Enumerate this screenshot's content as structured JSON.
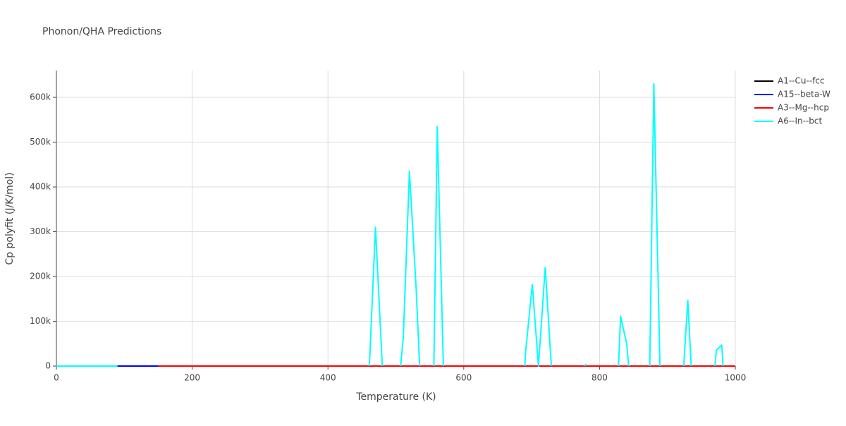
{
  "chart_data": {
    "type": "line",
    "title": "Phonon/QHA Predictions",
    "x_label": "Temperature (K)",
    "y_label": "Cp polyfit (J/K/mol)",
    "xlim": [
      0,
      1000
    ],
    "xticks": [
      0,
      200,
      400,
      600,
      800,
      1000
    ],
    "ylim": [
      0,
      660000
    ],
    "yticks": [
      0,
      {
        "value": 100000,
        "label": "100k"
      },
      {
        "value": 200000,
        "label": "200k"
      },
      {
        "value": 300000,
        "label": "300k"
      },
      {
        "value": 400000,
        "label": "400k"
      },
      {
        "value": 500000,
        "label": "500k"
      },
      {
        "value": 600000,
        "label": "600k"
      }
    ],
    "grid": true,
    "series": [
      {
        "name": "A1--Cu--fcc",
        "color": "#000000",
        "x": [
          0,
          1000
        ],
        "values": [
          0,
          0
        ]
      },
      {
        "name": "A15--beta-W",
        "color": "#0000ff",
        "x": [
          0,
          1000
        ],
        "values": [
          0,
          0
        ]
      },
      {
        "name": "A3--Mg--hcp",
        "color": "#ff0000",
        "x": [
          150,
          1000
        ],
        "values": [
          0,
          0
        ]
      },
      {
        "name": "A6--In--bct",
        "color": "#00ffff",
        "x": [
          0,
          90,
          95,
          461,
          470,
          480,
          490,
          507,
          511,
          520,
          530,
          535,
          545,
          556,
          561,
          570,
          580,
          690,
          691,
          701,
          710,
          720,
          729,
          735,
          779,
          780,
          785,
          828,
          831,
          840,
          843,
          850,
          874,
          880,
          889,
          895,
          924,
          930,
          935,
          940,
          970,
          972,
          980,
          982
        ],
        "values": [
          0,
          0,
          null,
          0,
          310000,
          0,
          null,
          0,
          65000,
          435000,
          170000,
          0,
          null,
          0,
          535000,
          0,
          null,
          0,
          30000,
          182000,
          0,
          220000,
          0,
          null,
          0,
          5000,
          null,
          0,
          111000,
          50000,
          0,
          null,
          0,
          630000,
          0,
          null,
          0,
          147000,
          0,
          null,
          0,
          35000,
          47000,
          0
        ]
      }
    ]
  }
}
